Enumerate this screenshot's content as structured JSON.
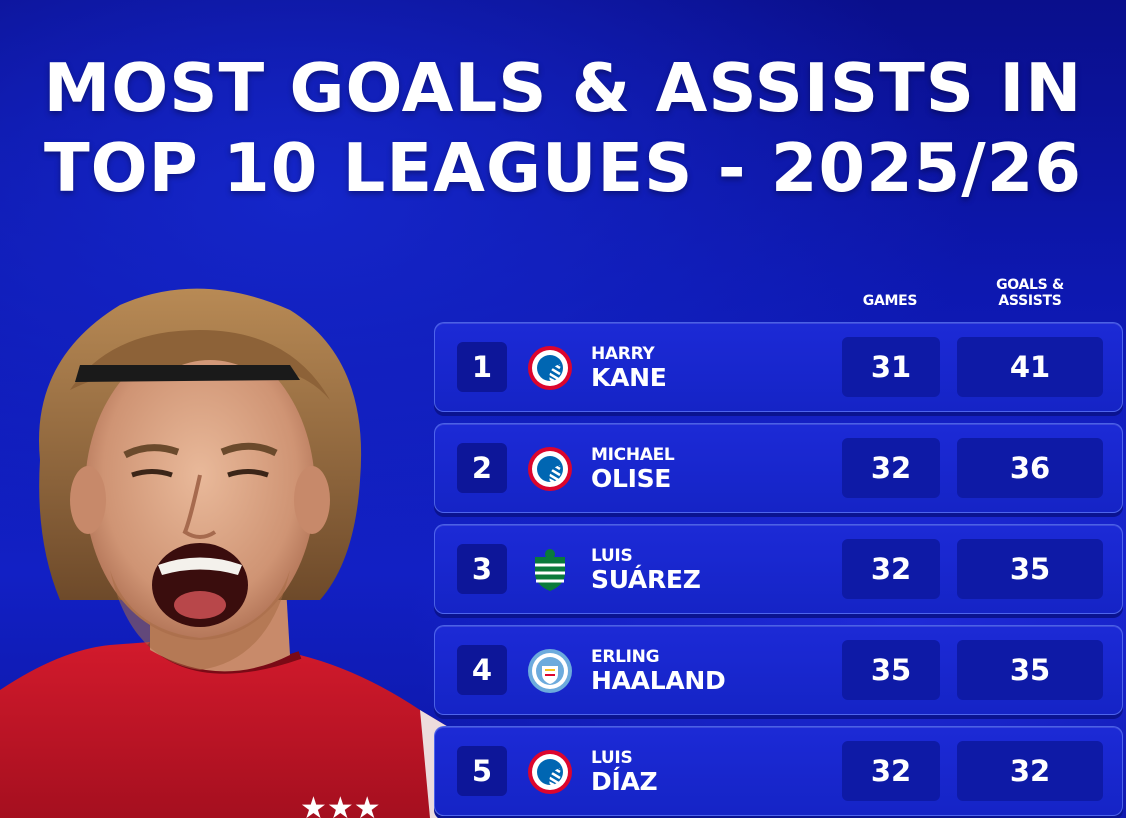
{
  "title": {
    "line1": "MOST GOALS & ASSISTS IN",
    "line2": "TOP 10 LEAGUES - 2025/26"
  },
  "columns": {
    "games": "GAMES",
    "goals_assists_line1": "GOALS &",
    "goals_assists_line2": "ASSISTS"
  },
  "players": [
    {
      "rank": "1",
      "first": "HARRY",
      "last": "KANE",
      "club_icon": "bayern-munchen-crest-icon",
      "games": "31",
      "goals_assists": "41"
    },
    {
      "rank": "2",
      "first": "MICHAEL",
      "last": "OLISE",
      "club_icon": "bayern-munchen-crest-icon",
      "games": "32",
      "goals_assists": "36"
    },
    {
      "rank": "3",
      "first": "LUIS",
      "last": "SUÁREZ",
      "club_icon": "sporting-cp-crest-icon",
      "games": "32",
      "goals_assists": "35"
    },
    {
      "rank": "4",
      "first": "ERLING",
      "last": "HAALAND",
      "club_icon": "manchester-city-crest-icon",
      "games": "35",
      "goals_assists": "35"
    },
    {
      "rank": "5",
      "first": "LUIS",
      "last": "DÍAZ",
      "club_icon": "bayern-munchen-crest-icon",
      "games": "32",
      "goals_assists": "32"
    }
  ],
  "colors": {
    "background": "#1220c4",
    "row": "#1c2ad6",
    "stat_box": "#0e1aa6",
    "bayern_red": "#dc052d",
    "sporting_green": "#0a7a3b",
    "city_blue": "#6cabdd"
  }
}
